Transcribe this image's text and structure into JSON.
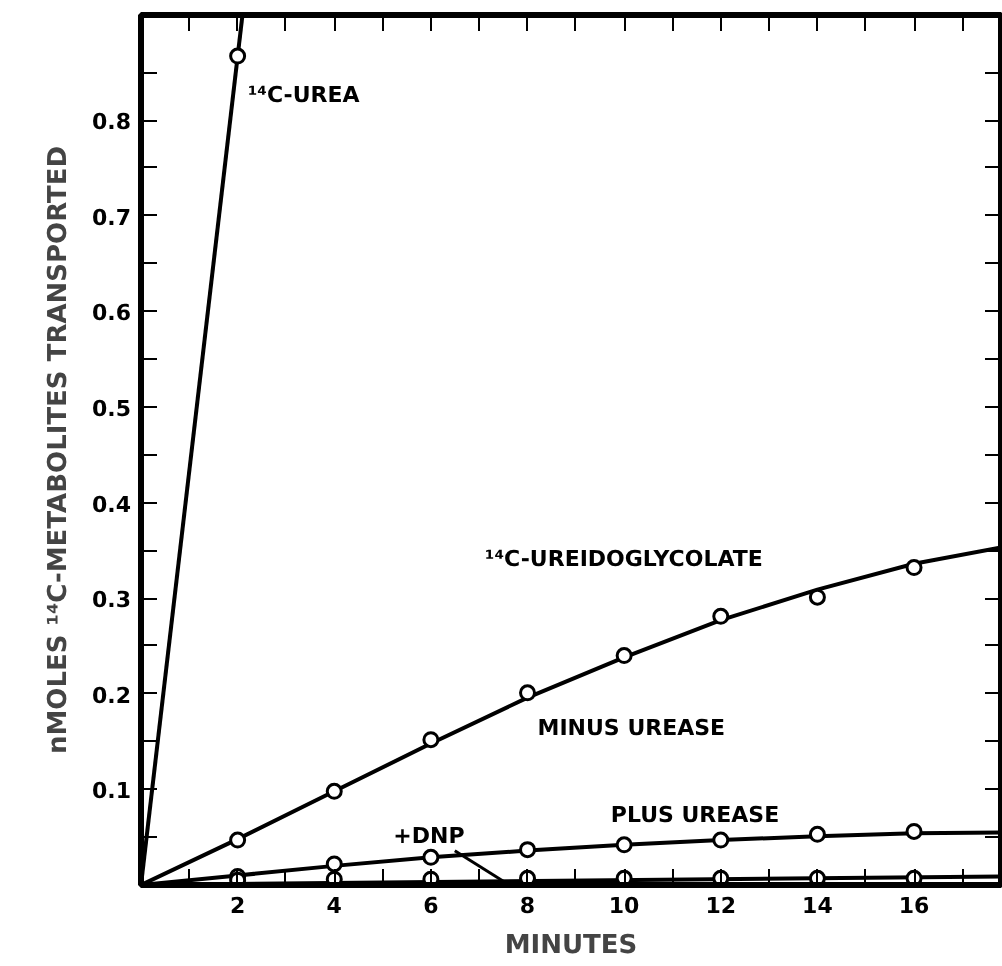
{
  "chart_data": {
    "type": "line",
    "xlabel": "MINUTES",
    "ylabel": "nMOLES ¹⁴C-METABOLITES TRANSPORTED",
    "xlim": [
      0,
      17.8
    ],
    "ylim": [
      0,
      0.91
    ],
    "xticks": [
      {
        "value": 1,
        "label": null
      },
      2,
      {
        "value": 3,
        "label": null
      },
      4,
      {
        "value": 5,
        "label": null
      },
      6,
      {
        "value": 7,
        "label": null
      },
      8,
      {
        "value": 9,
        "label": null
      },
      10,
      {
        "value": 11,
        "label": null
      },
      12,
      {
        "value": 13,
        "label": null
      },
      14,
      {
        "value": 15,
        "label": null
      },
      16,
      {
        "value": 17,
        "label": null
      }
    ],
    "yticks": [
      {
        "value": 0.05,
        "label": null
      },
      0.1,
      {
        "value": 0.15,
        "label": null
      },
      0.2,
      {
        "value": 0.25,
        "label": null
      },
      0.3,
      {
        "value": 0.35,
        "label": null
      },
      0.4,
      {
        "value": 0.45,
        "label": null
      },
      0.5,
      {
        "value": 0.55,
        "label": null
      },
      0.6,
      {
        "value": 0.65,
        "label": null
      },
      0.7,
      {
        "value": 0.75,
        "label": null
      },
      0.8,
      {
        "value": 0.85,
        "label": null
      }
    ],
    "grid": false,
    "marker": "circle",
    "series": [
      {
        "marker": "none",
        "color": "#000000",
        "x": [
          0,
          2.1
        ],
        "values": [
          0,
          0.91
        ]
      },
      {
        "type": "scatter",
        "color": "#000000",
        "x": [
          2
        ],
        "values": [
          0.867
        ]
      },
      {
        "marker": "none",
        "color": "#000000",
        "x": [
          0,
          2,
          4,
          6,
          8,
          10,
          12,
          14,
          16,
          17.8
        ],
        "values": [
          0,
          0.048,
          0.098,
          0.148,
          0.196,
          0.238,
          0.277,
          0.309,
          0.336,
          0.353
        ]
      },
      {
        "type": "scatter",
        "color": "#000000",
        "x": [
          2,
          4,
          6,
          8,
          10,
          12,
          14,
          16
        ],
        "values": [
          0.047,
          0.098,
          0.152,
          0.201,
          0.24,
          0.281,
          0.301,
          0.332
        ]
      },
      {
        "marker": "none",
        "color": "#000000",
        "x": [
          0,
          2,
          4,
          6,
          8,
          10,
          12,
          14,
          16,
          17.8
        ],
        "values": [
          0,
          0.01,
          0.02,
          0.029,
          0.036,
          0.042,
          0.047,
          0.051,
          0.054,
          0.055
        ]
      },
      {
        "type": "scatter",
        "color": "#000000",
        "x": [
          2,
          4,
          6,
          8,
          10,
          12,
          14,
          16
        ],
        "values": [
          0.009,
          0.022,
          0.029,
          0.037,
          0.042,
          0.047,
          0.053,
          0.056
        ]
      },
      {
        "marker": "none",
        "color": "#000000",
        "x": [
          0,
          17.8
        ],
        "values": [
          0,
          0.009
        ]
      },
      {
        "type": "scatter",
        "color": "#000000",
        "x": [
          2,
          4,
          6,
          8,
          10,
          12,
          14,
          16
        ],
        "values": [
          0.005,
          0.006,
          0.006,
          0.007,
          0.007,
          0.007,
          0.007,
          0.007
        ]
      }
    ],
    "annotations": [
      {
        "text": "¹⁴C-UREA",
        "x": 2,
        "y": 0.867
      },
      {
        "text": "¹⁴C-UREIDOGLYCOLATE",
        "x": 12,
        "y": 0.281
      },
      {
        "text": "MINUS UREASE",
        "x": 8,
        "y": 0.201
      },
      {
        "text": "PLUS UREASE",
        "x": 12,
        "y": 0.047
      },
      {
        "text": "+DNP",
        "x": 7.5,
        "y": 0.004
      }
    ]
  }
}
